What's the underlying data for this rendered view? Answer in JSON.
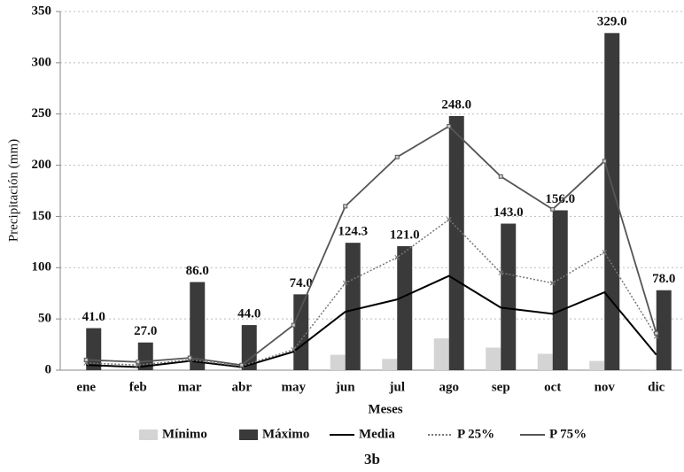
{
  "chart_data": {
    "type": "bar_line",
    "title": "3b",
    "x_label": "Meses",
    "y_label": "Precipitación (mm)",
    "categories": [
      "ene",
      "feb",
      "mar",
      "abr",
      "may",
      "jun",
      "jul",
      "ago",
      "sep",
      "oct",
      "nov",
      "dic"
    ],
    "ylim": [
      0,
      350
    ],
    "yticks": [
      0,
      50,
      100,
      150,
      200,
      250,
      300,
      350
    ],
    "grid": true,
    "legend": "bottom",
    "series": [
      {
        "name": "Mínimo",
        "kind": "bar",
        "color": "#d4d4d4",
        "values": [
          0,
          0,
          0,
          0,
          0,
          15,
          11,
          31,
          22,
          16,
          9,
          1
        ]
      },
      {
        "name": "Máximo",
        "kind": "bar",
        "color": "#3a3a3a",
        "values": [
          41,
          27,
          86,
          44,
          74,
          124.3,
          121,
          248,
          143,
          156,
          329,
          78
        ],
        "value_labels": [
          "41.0",
          "27.0",
          "86.0",
          "44.0",
          "74.0",
          "124.3",
          "121.0",
          "248.0",
          "143.0",
          "156.0",
          "329.0",
          "78.0"
        ]
      },
      {
        "name": "Media",
        "kind": "line",
        "color": "#000000",
        "values": [
          5,
          3,
          9,
          3,
          18,
          57,
          69,
          92,
          61,
          55,
          76,
          15
        ]
      },
      {
        "name": "P 25%",
        "kind": "dotted",
        "color": "#777777",
        "values": [
          7,
          5,
          10,
          4,
          20,
          85,
          110,
          147,
          95,
          85,
          115,
          33
        ]
      },
      {
        "name": "P 75%",
        "kind": "marker",
        "color": "#555555",
        "values": [
          10,
          8,
          12,
          5,
          44,
          160,
          208,
          238,
          189,
          157,
          204,
          36
        ]
      }
    ]
  }
}
